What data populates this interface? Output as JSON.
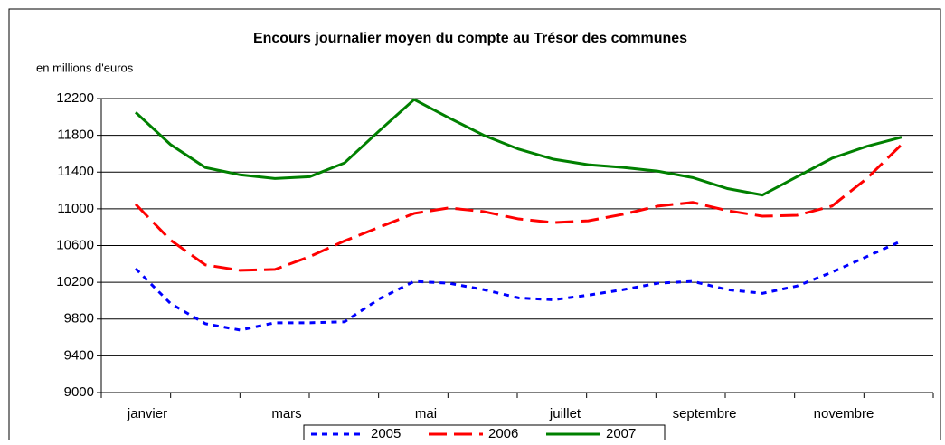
{
  "chart_data": {
    "type": "line",
    "title": "Encours journalier moyen du compte au Trésor des communes",
    "y_axis_label": "en millions d'euros",
    "categories": [
      "janvier",
      null,
      null,
      null,
      "mars",
      null,
      null,
      null,
      "mai",
      null,
      null,
      null,
      "juillet",
      null,
      null,
      null,
      "septembre",
      null,
      null,
      null,
      "novembre",
      null,
      null
    ],
    "series": [
      {
        "name": "2005",
        "color": "#0000ff",
        "dash": "dotted",
        "values": [
          10350,
          9970,
          9750,
          9680,
          9760,
          9760,
          9770,
          10020,
          10210,
          10190,
          10120,
          10030,
          10010,
          10060,
          10120,
          10190,
          10210,
          10120,
          10080,
          10160,
          10310,
          10480,
          10650
        ]
      },
      {
        "name": "2006",
        "color": "#ff0000",
        "dash": "dashed",
        "values": [
          11050,
          10660,
          10390,
          10330,
          10340,
          10480,
          10650,
          10800,
          10950,
          11010,
          10970,
          10890,
          10850,
          10870,
          10940,
          11030,
          11070,
          10980,
          10920,
          10930,
          11030,
          11330,
          11700
        ]
      },
      {
        "name": "2007",
        "color": "#008000",
        "dash": "solid",
        "values": [
          12050,
          11700,
          11450,
          11370,
          11330,
          11350,
          11500,
          11850,
          12190,
          11990,
          11800,
          11650,
          11540,
          11480,
          11450,
          11410,
          11340,
          11220,
          11150,
          11350,
          11550,
          11680,
          11780
        ]
      }
    ],
    "ylim": [
      9000,
      12200
    ],
    "yticks": [
      9000,
      9400,
      9800,
      10200,
      10600,
      11000,
      11400,
      11800,
      12200
    ],
    "grid": true,
    "legend": "bottom"
  }
}
